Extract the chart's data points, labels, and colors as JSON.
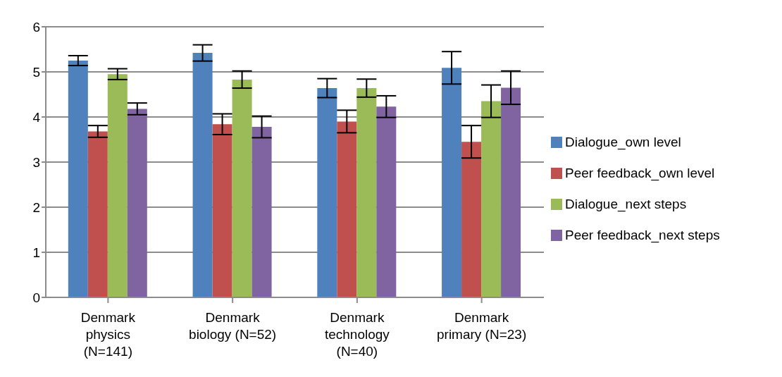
{
  "chart_data": {
    "type": "bar",
    "categories": [
      "Denmark physics (N=141)",
      "Denmark biology (N=52)",
      "Denmark technology (N=40)",
      "Denmark primary (N=23)"
    ],
    "series": [
      {
        "name": "Dialogue_own level",
        "color": "#4f81bd",
        "values": [
          5.25,
          5.42,
          4.64,
          5.09
        ],
        "errors": [
          0.11,
          0.18,
          0.21,
          0.36
        ]
      },
      {
        "name": "Peer feedback_own level",
        "color": "#c0504d",
        "values": [
          3.68,
          3.84,
          3.9,
          3.45
        ],
        "errors": [
          0.13,
          0.23,
          0.25,
          0.36
        ]
      },
      {
        "name": "Dialogue_next steps",
        "color": "#9bbb59",
        "values": [
          4.95,
          4.83,
          4.64,
          4.35
        ],
        "errors": [
          0.12,
          0.19,
          0.2,
          0.36
        ]
      },
      {
        "name": "Peer feedback_next steps",
        "color": "#8064a2",
        "values": [
          4.18,
          3.78,
          4.23,
          4.65
        ],
        "errors": [
          0.13,
          0.24,
          0.24,
          0.37
        ]
      }
    ],
    "ylim": [
      0,
      6
    ],
    "yticks": [
      0,
      1,
      2,
      3,
      4,
      5,
      6
    ],
    "grid": "y",
    "legend": "right"
  }
}
